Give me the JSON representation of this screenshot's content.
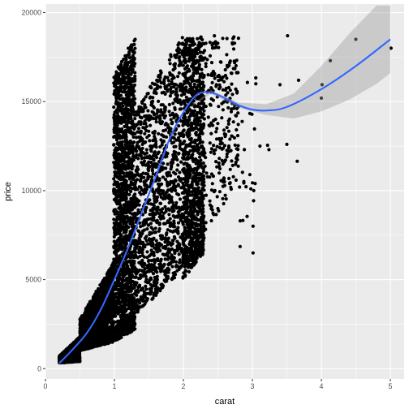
{
  "chart_data": {
    "type": "scatter",
    "title": "",
    "xlabel": "carat",
    "ylabel": "price",
    "xlim": [
      0,
      5.2
    ],
    "ylim": [
      -580,
      20480
    ],
    "x_ticks": [
      0,
      1,
      2,
      3,
      4,
      5
    ],
    "x_tick_labels": [
      "0",
      "1",
      "2",
      "3",
      "4",
      "5"
    ],
    "y_ticks": [
      0,
      5000,
      10000,
      15000,
      20000
    ],
    "y_tick_labels": [
      "0",
      "5000",
      "10000",
      "15000",
      "20000"
    ],
    "grid": true,
    "legend": "none",
    "colors": {
      "panel": "#ebebeb",
      "grid": "#ffffff",
      "points": "#000000",
      "smooth_line": "#3366ff",
      "confidence_band": "#999999"
    },
    "clusters": [
      {
        "x_from": 0.2,
        "x_to": 0.5,
        "price_min": [
          330,
          400
        ],
        "price_max": [
          700,
          1800
        ],
        "count": 1500
      },
      {
        "x_from": 0.5,
        "x_to": 0.99,
        "price_min": [
          1000,
          1500
        ],
        "price_max": [
          2800,
          6000
        ],
        "count": 1600
      },
      {
        "x_from": 0.99,
        "x_to": 1.3,
        "price_min": [
          1500,
          2200
        ],
        "price_max": [
          16500,
          18700
        ],
        "count": 1700
      },
      {
        "x_from": 1.3,
        "x_to": 1.99,
        "price_min": [
          3000,
          5500
        ],
        "price_max": [
          14500,
          18700
        ],
        "count": 1200
      },
      {
        "x_from": 1.99,
        "x_to": 2.3,
        "price_min": [
          5000,
          6500
        ],
        "price_max": [
          18700,
          18700
        ],
        "count": 1100
      },
      {
        "x_from": 2.3,
        "x_to": 2.8,
        "price_min": [
          7500,
          10500
        ],
        "price_max": [
          18700,
          18700
        ],
        "count": 250
      },
      {
        "x_from": 2.8,
        "x_to": 3.05,
        "price_min": [
          6500,
          8000
        ],
        "price_max": [
          14000,
          18500
        ],
        "count": 20
      }
    ],
    "points": [
      {
        "x": 3.01,
        "y": 6500
      },
      {
        "x": 3.01,
        "y": 8000
      },
      {
        "x": 3.02,
        "y": 10000
      },
      {
        "x": 3.04,
        "y": 10400
      },
      {
        "x": 3.05,
        "y": 16000
      },
      {
        "x": 3.11,
        "y": 12500
      },
      {
        "x": 3.22,
        "y": 12550
      },
      {
        "x": 3.24,
        "y": 12300
      },
      {
        "x": 3.4,
        "y": 15950
      },
      {
        "x": 3.5,
        "y": 12600
      },
      {
        "x": 3.51,
        "y": 18700
      },
      {
        "x": 3.65,
        "y": 11650
      },
      {
        "x": 3.67,
        "y": 16200
      },
      {
        "x": 4.0,
        "y": 15200
      },
      {
        "x": 4.01,
        "y": 15950
      },
      {
        "x": 4.13,
        "y": 17300
      },
      {
        "x": 4.5,
        "y": 18500
      },
      {
        "x": 5.01,
        "y": 18000
      }
    ],
    "smooth_line": {
      "x": [
        0.2,
        0.4,
        0.6,
        0.8,
        1.0,
        1.2,
        1.4,
        1.6,
        1.8,
        2.0,
        2.2,
        2.4,
        2.6,
        2.8,
        3.0,
        3.2,
        3.5,
        4.0,
        4.5,
        5.0
      ],
      "y": [
        300,
        1100,
        2000,
        3300,
        5000,
        6800,
        8800,
        10800,
        12900,
        14400,
        15400,
        15500,
        15200,
        14800,
        14550,
        14500,
        14700,
        15700,
        17000,
        18500
      ]
    },
    "confidence_band": {
      "x": [
        0.2,
        1.0,
        2.0,
        2.4,
        2.8,
        3.2,
        3.6,
        4.0,
        4.4,
        4.8,
        5.0
      ],
      "lower": [
        300,
        5000,
        14400,
        15450,
        14650,
        14250,
        14050,
        14450,
        15100,
        16000,
        16600
      ],
      "upper": [
        300,
        5000,
        14400,
        15650,
        14950,
        14850,
        15450,
        17000,
        18800,
        20400,
        20400
      ]
    }
  }
}
